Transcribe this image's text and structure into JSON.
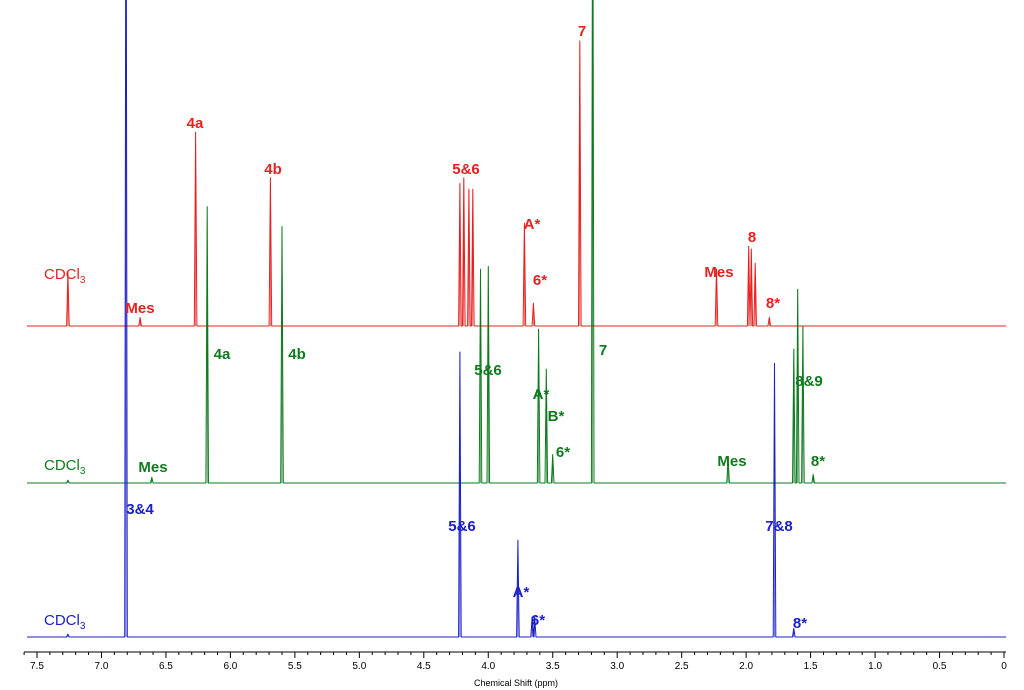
{
  "chart_data": {
    "type": "line",
    "xlabel": "Chemical Shift (ppm)",
    "xlim": [
      7.6,
      0
    ],
    "x_reversed": true,
    "x_ticks": [
      7.5,
      7.0,
      6.5,
      6.0,
      5.5,
      5.0,
      4.5,
      4.0,
      3.5,
      3.0,
      2.5,
      2.0,
      1.5,
      1.0,
      0.5,
      0
    ],
    "x_tick_labels": [
      "7.5",
      "7.0",
      "6.5",
      "6.0",
      "5.5",
      "5.0",
      "4.5",
      "4.0",
      "3.5",
      "3.0",
      "2.5",
      "2.0",
      "1.5",
      "1.0",
      "0.5",
      "0"
    ],
    "grid": false,
    "series": [
      {
        "color": "#e8201f",
        "solvent_label": "CDCl",
        "solvent_subscript": "3",
        "peaks": [
          {
            "ppm": 7.26,
            "height": 0.19
          },
          {
            "ppm": 6.7,
            "height": 0.03
          },
          {
            "ppm": 6.27,
            "height": 0.68
          },
          {
            "ppm": 5.69,
            "height": 0.52
          },
          {
            "ppm": 4.22,
            "height": 0.5
          },
          {
            "ppm": 4.19,
            "height": 0.52
          },
          {
            "ppm": 4.15,
            "height": 0.48
          },
          {
            "ppm": 4.12,
            "height": 0.48
          },
          {
            "ppm": 3.72,
            "height": 0.36
          },
          {
            "ppm": 3.65,
            "height": 0.08
          },
          {
            "ppm": 3.29,
            "height": 1.0
          },
          {
            "ppm": 2.23,
            "height": 0.2
          },
          {
            "ppm": 1.98,
            "height": 0.28
          },
          {
            "ppm": 1.96,
            "height": 0.27
          },
          {
            "ppm": 1.93,
            "height": 0.22
          },
          {
            "ppm": 1.82,
            "height": 0.03
          }
        ],
        "labels": [
          {
            "text": "4a",
            "ppm": 6.27
          },
          {
            "text": "4b",
            "ppm": 5.69
          },
          {
            "text": "5&6",
            "ppm": 4.17
          },
          {
            "text": "A*",
            "ppm": 3.72
          },
          {
            "text": "6*",
            "ppm": 3.64
          },
          {
            "text": "7",
            "ppm": 3.29
          },
          {
            "text": "Mes",
            "ppm": 2.23
          },
          {
            "text": "8",
            "ppm": 1.96
          },
          {
            "text": "8*",
            "ppm": 1.8
          },
          {
            "text": "Mes",
            "ppm": 6.7
          }
        ]
      },
      {
        "color": "#0f7a1e",
        "solvent_label": "CDCl",
        "solvent_subscript": "3",
        "peaks": [
          {
            "ppm": 7.26,
            "height": 0.01
          },
          {
            "ppm": 6.61,
            "height": 0.02
          },
          {
            "ppm": 6.18,
            "height": 0.97
          },
          {
            "ppm": 5.6,
            "height": 0.9
          },
          {
            "ppm": 4.06,
            "height": 0.75
          },
          {
            "ppm": 4.0,
            "height": 0.76
          },
          {
            "ppm": 3.61,
            "height": 0.54
          },
          {
            "ppm": 3.55,
            "height": 0.4
          },
          {
            "ppm": 3.5,
            "height": 0.1
          },
          {
            "ppm": 3.19,
            "height": 2.46
          },
          {
            "ppm": 2.14,
            "height": 0.09
          },
          {
            "ppm": 1.63,
            "height": 0.47
          },
          {
            "ppm": 1.6,
            "height": 0.68
          },
          {
            "ppm": 1.56,
            "height": 0.55
          },
          {
            "ppm": 1.48,
            "height": 0.03
          }
        ],
        "labels": [
          {
            "text": "4a",
            "ppm": 6.18
          },
          {
            "text": "4b",
            "ppm": 5.6
          },
          {
            "text": "5&6",
            "ppm": 4.03
          },
          {
            "text": "7",
            "ppm": 3.19
          },
          {
            "text": "A*",
            "ppm": 3.61
          },
          {
            "text": "B*",
            "ppm": 3.55
          },
          {
            "text": "6*",
            "ppm": 3.49
          },
          {
            "text": "Mes",
            "ppm": 2.14
          },
          {
            "text": "8&9",
            "ppm": 1.6
          },
          {
            "text": "8*",
            "ppm": 1.46
          },
          {
            "text": "Mes",
            "ppm": 6.61
          }
        ]
      },
      {
        "color": "#1c20c8",
        "solvent_label": "CDCl",
        "solvent_subscript": "3",
        "peaks": [
          {
            "ppm": 7.26,
            "height": 0.01
          },
          {
            "ppm": 6.81,
            "height": 3.18
          },
          {
            "ppm": 4.22,
            "height": 1.0
          },
          {
            "ppm": 3.77,
            "height": 0.34
          },
          {
            "ppm": 3.66,
            "height": 0.07
          },
          {
            "ppm": 3.64,
            "height": 0.07
          },
          {
            "ppm": 1.78,
            "height": 0.96
          },
          {
            "ppm": 1.63,
            "height": 0.03
          }
        ],
        "labels": [
          {
            "text": "3&4",
            "ppm": 6.81
          },
          {
            "text": "5&6",
            "ppm": 4.22
          },
          {
            "text": "A*",
            "ppm": 3.77
          },
          {
            "text": "6*",
            "ppm": 3.64
          },
          {
            "text": "7&8",
            "ppm": 1.78
          },
          {
            "text": "8*",
            "ppm": 1.62
          }
        ]
      }
    ]
  }
}
